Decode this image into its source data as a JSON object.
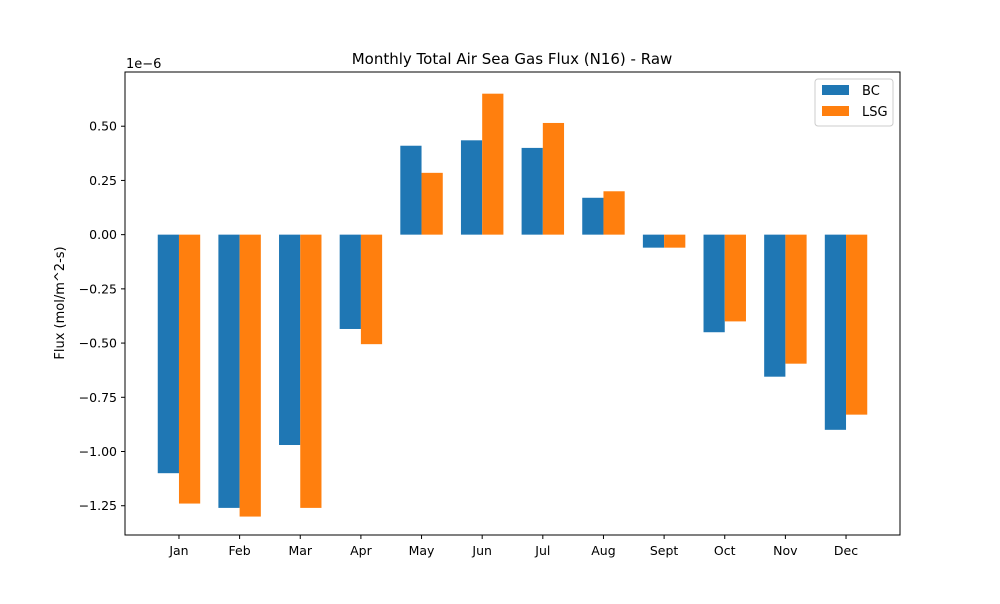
{
  "chart_data": {
    "type": "bar",
    "title": "Monthly Total Air Sea Gas Flux (N16) - Raw",
    "xlabel": "",
    "ylabel": "Flux (mol/m^2-s)",
    "offset_label": "1e−6",
    "scale": 1e-06,
    "categories": [
      "Jan",
      "Feb",
      "Mar",
      "Apr",
      "May",
      "Jun",
      "Jul",
      "Aug",
      "Sept",
      "Oct",
      "Nov",
      "Dec"
    ],
    "series": [
      {
        "name": "BC",
        "color": "#1f77b4",
        "values": [
          -1.1,
          -1.26,
          -0.97,
          -0.435,
          0.41,
          0.435,
          0.4,
          0.17,
          -0.06,
          -0.45,
          -0.655,
          -0.9
        ]
      },
      {
        "name": "LSG",
        "color": "#ff7f0e",
        "values": [
          -1.24,
          -1.3,
          -1.26,
          -0.505,
          0.285,
          0.65,
          0.515,
          0.2,
          -0.06,
          -0.4,
          -0.595,
          -0.83
        ]
      }
    ],
    "ylim": [
      -1.385,
      0.75
    ],
    "yticks": [
      -1.25,
      -1.0,
      -0.75,
      -0.5,
      -0.25,
      0.0,
      0.25,
      0.5
    ],
    "ytick_labels": [
      "−1.25",
      "−1.00",
      "−0.75",
      "−0.50",
      "−0.25",
      "0.00",
      "0.25",
      "0.50"
    ],
    "legend_position": "top-right",
    "grid": false
  }
}
